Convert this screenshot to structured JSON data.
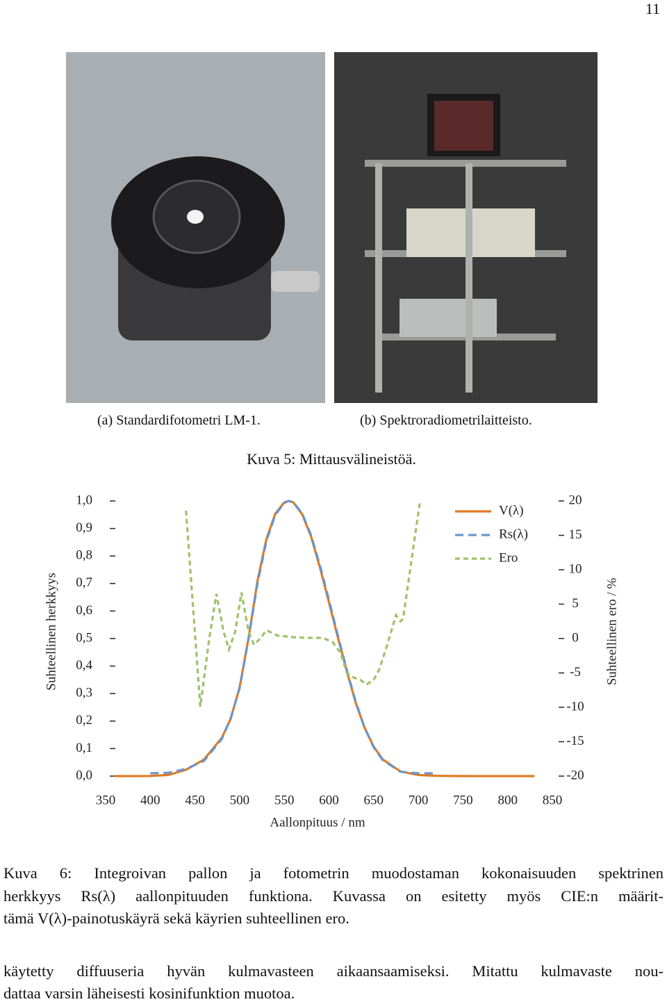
{
  "page_number": "11",
  "figures": [
    {
      "caption": "(a) Standardifotometri LM-1."
    },
    {
      "caption": "(b) Spektroradiometrilaitteisto."
    }
  ],
  "figure5_caption": "Kuva 5: Mittausvälineistöä.",
  "chart_data": {
    "type": "line",
    "xlabel": "Aallonpituus / nm",
    "ylabel": "Suhteellinen herkkyys",
    "y2label": "Suhteellinen ero / %",
    "xlim": [
      350,
      850
    ],
    "xticks": [
      350,
      400,
      450,
      500,
      550,
      600,
      650,
      700,
      750,
      800,
      850
    ],
    "ylim": [
      0,
      1
    ],
    "yticks": [
      {
        "value": 0,
        "label": "0,0"
      },
      {
        "value": 0.1,
        "label": "0,1"
      },
      {
        "value": 0.2,
        "label": "0,2"
      },
      {
        "value": 0.3,
        "label": "0,3"
      },
      {
        "value": 0.4,
        "label": "0,4"
      },
      {
        "value": 0.5,
        "label": "0,5"
      },
      {
        "value": 0.6,
        "label": "0,6"
      },
      {
        "value": 0.7,
        "label": "0,7"
      },
      {
        "value": 0.8,
        "label": "0,8"
      },
      {
        "value": 0.9,
        "label": "0,9"
      },
      {
        "value": 1,
        "label": "1,0"
      }
    ],
    "y2lim": [
      -20,
      20
    ],
    "y2ticks": [
      -20,
      -15,
      -10,
      -5,
      0,
      5,
      10,
      15,
      20
    ],
    "legend": "top-right",
    "series": [
      {
        "name": "V(λ)",
        "color": "#e07b22",
        "dash": "none",
        "x": [
          360,
          380,
          400,
          420,
          440,
          460,
          480,
          490,
          500,
          510,
          520,
          530,
          540,
          550,
          555,
          560,
          570,
          580,
          590,
          600,
          610,
          620,
          630,
          640,
          650,
          660,
          680,
          700,
          720,
          740,
          760,
          780,
          800,
          830
        ],
        "values": [
          0,
          4e-05,
          0.0004,
          0.004,
          0.023,
          0.06,
          0.139,
          0.208,
          0.323,
          0.503,
          0.71,
          0.862,
          0.954,
          0.995,
          1.0,
          0.995,
          0.952,
          0.87,
          0.757,
          0.631,
          0.503,
          0.381,
          0.265,
          0.175,
          0.107,
          0.061,
          0.017,
          0.0041,
          0.001,
          0.00025,
          6e-05,
          2e-05,
          0,
          0
        ]
      },
      {
        "name": "Rs(λ)",
        "color": "#6a96cc",
        "dash": "12 7",
        "x": [
          400,
          420,
          440,
          460,
          480,
          490,
          500,
          510,
          520,
          530,
          540,
          550,
          555,
          560,
          570,
          580,
          590,
          600,
          610,
          620,
          630,
          640,
          650,
          660,
          680,
          700,
          720
        ],
        "values": [
          0.01,
          0.012,
          0.026,
          0.055,
          0.135,
          0.21,
          0.32,
          0.5,
          0.7,
          0.855,
          0.95,
          0.993,
          1.0,
          0.996,
          0.955,
          0.875,
          0.765,
          0.64,
          0.51,
          0.385,
          0.27,
          0.175,
          0.105,
          0.058,
          0.016,
          0.01,
          0.01
        ]
      },
      {
        "name": "Ero",
        "color": "#9dc26b",
        "dash": "7 5",
        "axis": "y2",
        "x": [
          440,
          456,
          466,
          474,
          482,
          488,
          495,
          502,
          510,
          516,
          523,
          530,
          543,
          560,
          574,
          593,
          604,
          613,
          620,
          628,
          635,
          642,
          650,
          656,
          665,
          675,
          680,
          683,
          702
        ],
        "values": [
          18.6,
          -9.9,
          0,
          6.5,
          1,
          -1.6,
          1,
          6.7,
          1,
          -0.9,
          0,
          1.2,
          0.4,
          0.2,
          0.1,
          0.1,
          -0.5,
          -2.1,
          -5,
          -5.7,
          -6,
          -6.7,
          -6,
          -4.6,
          -1,
          3.4,
          2.5,
          2.9,
          20.1
        ]
      }
    ]
  },
  "figure6_caption": [
    "Kuva 6: Integroivan pallon ja fotometrin muodostaman kokonaisuuden spektrinen",
    "herkkyys Rs(λ) aallonpituuden funktiona. Kuvassa on esitetty myös CIE:n määrit-",
    "tämä V(λ)-painotuskäyrä sekä käyrien suhteellinen ero."
  ],
  "body": [
    "käytetty diffuuseria hyvän kulmavasteen aikaansaamiseksi. Mitattu kulmavaste nou-",
    "dattaa varsin läheisesti kosinifunktion muotoa."
  ]
}
